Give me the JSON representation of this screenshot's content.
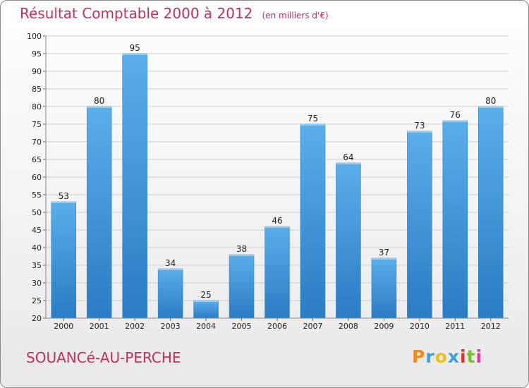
{
  "title": "Résultat Comptable 2000 à 2012",
  "unit": "(en milliers d'€)",
  "commune": "SOUANCé-AU-PERCHE",
  "logo": {
    "letters": [
      "P",
      "r",
      "o",
      "x",
      "i",
      "t",
      "i"
    ],
    "colors": [
      "#f08a1c",
      "#3aa0e0",
      "#f0c020",
      "#3aa0e0",
      "#e0302a",
      "#7ac02a",
      "#e0409a"
    ]
  },
  "colors": {
    "bar": "#4a9fe0",
    "bar_light": "#69b8f0",
    "bar_dark": "#1f6fb0",
    "title": "#c0305a"
  },
  "chart_data": {
    "type": "bar",
    "title": "Résultat Comptable 2000 à 2012",
    "ylabel": "(en milliers d'€)",
    "categories": [
      "2000",
      "2001",
      "2002",
      "2003",
      "2004",
      "2005",
      "2006",
      "2007",
      "2008",
      "2009",
      "2010",
      "2011",
      "2012"
    ],
    "values": [
      53,
      80,
      95,
      34,
      25,
      38,
      46,
      75,
      64,
      37,
      73,
      76,
      80
    ],
    "ylim": [
      20,
      100
    ],
    "yticks": [
      20,
      25,
      30,
      35,
      40,
      45,
      50,
      55,
      60,
      65,
      70,
      75,
      80,
      85,
      90,
      95,
      100
    ],
    "grid": true
  }
}
